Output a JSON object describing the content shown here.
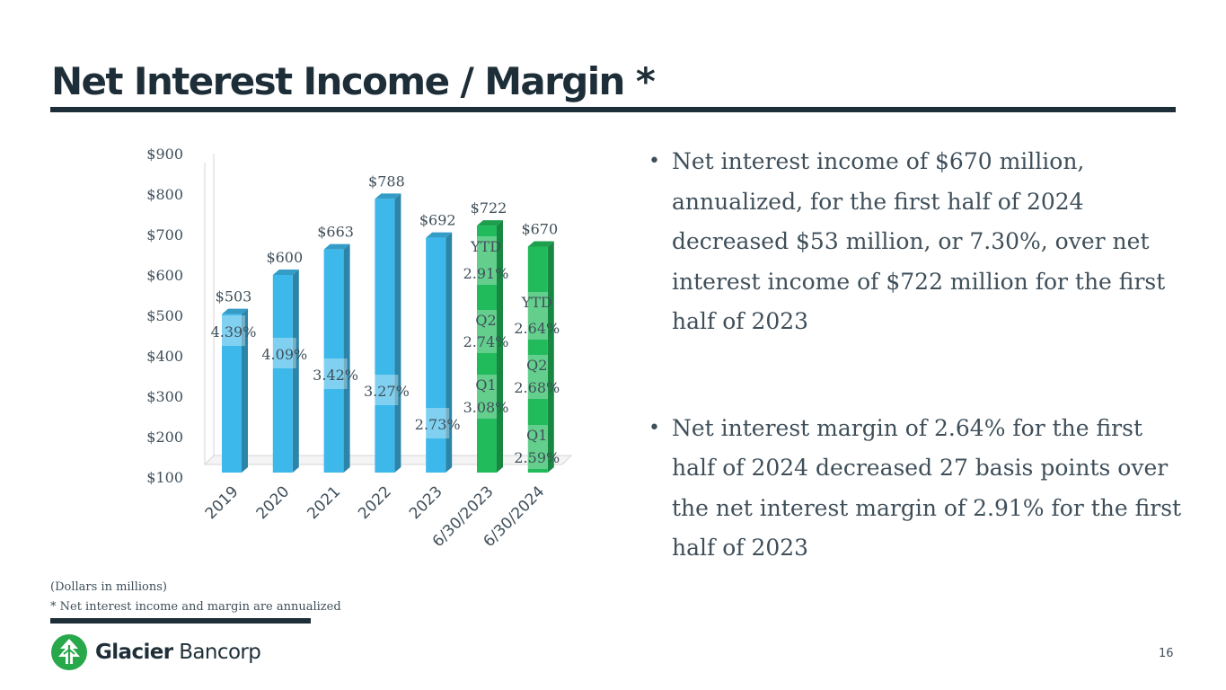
{
  "page": {
    "title": "Net Interest Income / Margin *",
    "page_number": "16"
  },
  "bullets": [
    "Net interest income of $670 million, annualized, for the first half of 2024 decreased $53 million, or 7.30%, over net interest income of $722 million for the first half of 2023",
    "Net interest margin of 2.64% for the first half of 2024 decreased 27 basis points over the net interest margin of 2.91% for the first half of 2023"
  ],
  "bullet_symbol": "•",
  "footnotes": {
    "units": "(Dollars in millions)",
    "annualized": "* Net interest income and margin are annualized"
  },
  "logo": {
    "bold": "Glacier",
    "light": " Bancorp",
    "icon": "glacier-tree-icon"
  },
  "colors": {
    "annual_bar": "#3db8ea",
    "ytd_bar": "#22bb5c",
    "title": "#1e2e38",
    "text": "#3f4f5a"
  },
  "chart_data": {
    "type": "bar",
    "title": "",
    "xlabel": "",
    "ylabel": "",
    "ylim": [
      100,
      900
    ],
    "y_ticks": [
      "$100",
      "$200",
      "$300",
      "$400",
      "$500",
      "$600",
      "$700",
      "$800",
      "$900"
    ],
    "y_tick_values": [
      100,
      200,
      300,
      400,
      500,
      600,
      700,
      800,
      900
    ],
    "categories": [
      "2019",
      "2020",
      "2021",
      "2022",
      "2023",
      "6/30/2023",
      "6/30/2024"
    ],
    "values": [
      503,
      600,
      663,
      788,
      692,
      722,
      670
    ],
    "value_labels": [
      "$503",
      "$600",
      "$663",
      "$788",
      "$692",
      "$722",
      "$670"
    ],
    "margin_labels": [
      [
        "4.39%"
      ],
      [
        "4.09%"
      ],
      [
        "3.42%"
      ],
      [
        "3.27%"
      ],
      [
        "2.73%"
      ],
      [
        "YTD",
        "2.91%",
        "Q2",
        "2.74%",
        "Q1",
        "3.08%"
      ],
      [
        "YTD",
        "2.64%",
        "Q2",
        "2.68%",
        "Q1",
        "2.59%"
      ]
    ],
    "margin_values": [
      4.39,
      4.09,
      3.42,
      3.27,
      2.73,
      2.91,
      2.64
    ],
    "quarter_margins": {
      "6/30/2023": {
        "Q1": 3.08,
        "Q2": 2.74,
        "YTD": 2.91
      },
      "6/30/2024": {
        "Q1": 2.59,
        "Q2": 2.68,
        "YTD": 2.64
      }
    },
    "series_kind": [
      "annual",
      "annual",
      "annual",
      "annual",
      "annual",
      "ytd",
      "ytd"
    ]
  }
}
